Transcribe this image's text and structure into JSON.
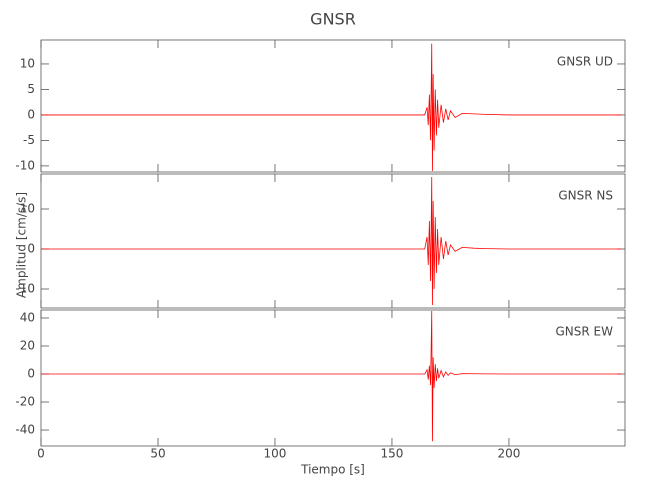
{
  "chart_data": [
    {
      "type": "line",
      "title": "GNSR",
      "annotation": "GNSR   UD",
      "color": "#ff0000",
      "x": [
        0,
        50,
        100,
        150,
        164,
        165,
        165.5,
        166,
        166.5,
        167,
        167.3,
        167.6,
        168,
        168.5,
        169,
        169.5,
        170,
        171,
        172,
        173,
        174,
        175,
        177,
        180,
        185,
        190,
        200,
        220,
        248
      ],
      "values": [
        0,
        0,
        0,
        0,
        0,
        1.5,
        -2,
        4,
        -5,
        14,
        -11,
        8,
        -7,
        5,
        -4,
        3,
        -2.5,
        2,
        -1.5,
        1.2,
        -1,
        0.8,
        -0.5,
        0.3,
        0.2,
        0.1,
        0,
        0,
        0
      ],
      "xlim": [
        0,
        249.6
      ],
      "xticks": [
        0,
        50,
        100,
        150,
        200
      ],
      "ylim": [
        -11.2,
        14.7
      ],
      "yticks": [
        -10,
        -5,
        0,
        5,
        10
      ]
    },
    {
      "type": "line",
      "ylabel": "Amplitud [cm/s/s]",
      "annotation": "GNSR   NS",
      "color": "#ff0000",
      "x": [
        0,
        50,
        100,
        150,
        164,
        165,
        165.5,
        166,
        166.5,
        167,
        167.3,
        167.6,
        168,
        168.5,
        169,
        169.5,
        170,
        171,
        172,
        173,
        174,
        175,
        177,
        180,
        185,
        190,
        200,
        220,
        248
      ],
      "values": [
        0,
        0,
        0,
        0,
        0,
        3,
        -4,
        7,
        -8,
        18,
        -14,
        12,
        -10,
        8,
        -6,
        5,
        -4,
        3,
        -2.5,
        2,
        -1.5,
        1,
        -0.6,
        0.4,
        0.2,
        0.1,
        0,
        0,
        0
      ],
      "xlim": [
        0,
        249.6
      ],
      "xticks": [
        0,
        50,
        100,
        150,
        200
      ],
      "ylim": [
        -14.75,
        18.75
      ],
      "yticks": [
        -10,
        0,
        10
      ]
    },
    {
      "type": "line",
      "xlabel": "Tiempo [s]",
      "annotation": "GNSR   EW",
      "color": "#ff0000",
      "x": [
        0,
        50,
        100,
        150,
        164,
        165,
        165.5,
        166,
        166.5,
        167,
        167.3,
        167.6,
        168,
        168.5,
        169,
        169.5,
        170,
        171,
        172,
        173,
        174,
        175,
        177,
        180,
        185,
        190,
        200,
        220,
        248
      ],
      "values": [
        0,
        0,
        0,
        0,
        0,
        3,
        -4,
        6,
        -8,
        45,
        -48,
        12,
        -10,
        7,
        -5,
        4,
        -3,
        2.5,
        -2,
        1.5,
        -1,
        0.8,
        -0.5,
        0.3,
        0.2,
        0.1,
        0,
        0,
        0
      ],
      "xlim": [
        0,
        249.6
      ],
      "xticks": [
        0,
        50,
        100,
        150,
        200
      ],
      "ylim": [
        -51.4,
        45.7
      ],
      "yticks": [
        -40,
        -20,
        0,
        20,
        40
      ]
    }
  ]
}
